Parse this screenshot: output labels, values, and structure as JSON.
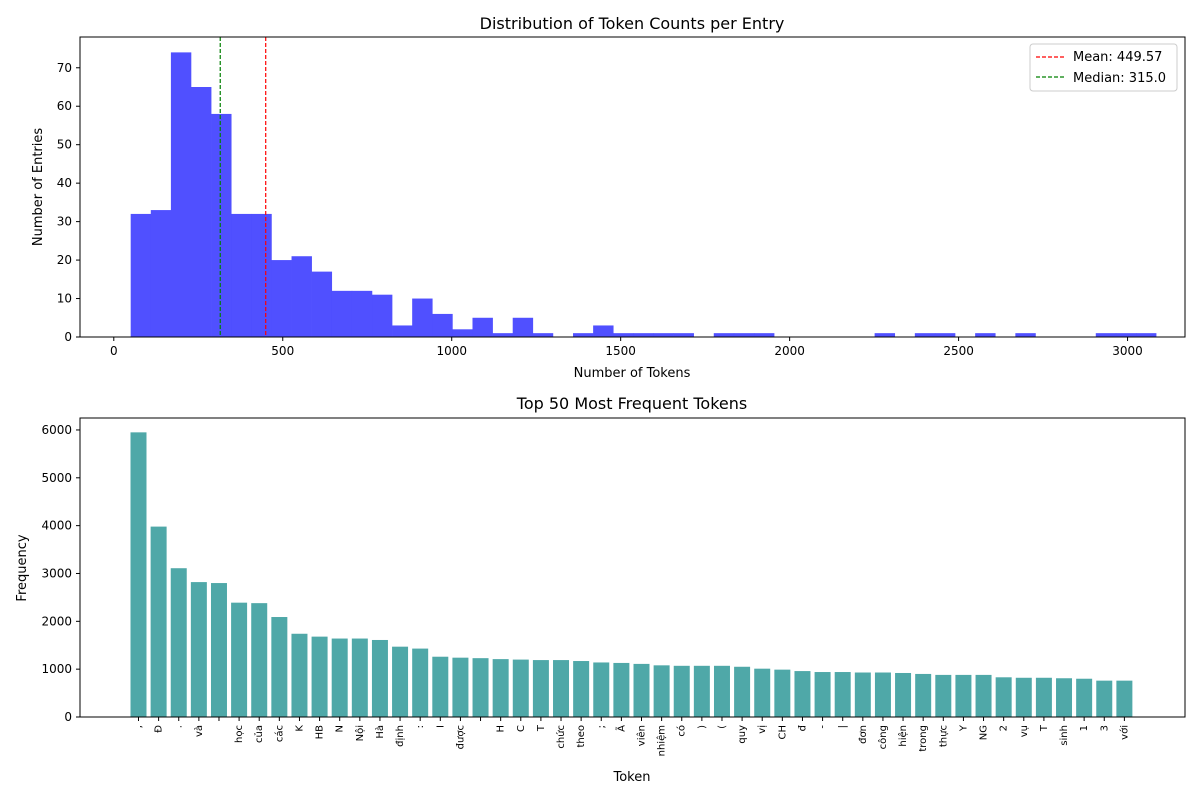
{
  "chart_data": [
    {
      "type": "bar",
      "subtype": "histogram",
      "title": "Distribution of Token Counts per Entry",
      "xlabel": "Number of Tokens",
      "ylabel": "Number of Entries",
      "xlim": [
        -100,
        3170
      ],
      "ylim": [
        0,
        78
      ],
      "xticks": [
        0,
        500,
        1000,
        1500,
        2000,
        2500,
        3000
      ],
      "yticks": [
        0,
        10,
        20,
        30,
        40,
        50,
        60,
        70
      ],
      "color": "#4c4cff",
      "bin_start": 50,
      "bin_width": 59.5,
      "values": [
        32,
        33,
        74,
        65,
        58,
        32,
        32,
        20,
        21,
        17,
        12,
        12,
        11,
        3,
        10,
        6,
        2,
        5,
        1,
        5,
        1,
        0,
        1,
        3,
        1,
        1,
        1,
        1,
        0,
        1,
        1,
        1,
        0,
        0,
        0,
        0,
        0,
        1,
        0,
        1,
        1,
        0,
        1,
        0,
        1,
        0,
        0,
        0,
        1,
        1,
        1
      ],
      "lines": [
        {
          "label": "Mean: 449.57",
          "x": 449.57,
          "color": "#ff0000"
        },
        {
          "label": "Median: 315.0",
          "x": 315.0,
          "color": "#008000"
        }
      ],
      "legend": "top-right",
      "grid": false
    },
    {
      "type": "bar",
      "title": "Top 50 Most Frequent Tokens",
      "xlabel": "Token",
      "ylabel": "Frequency",
      "ylim": [
        0,
        6250
      ],
      "yticks": [
        0,
        1000,
        2000,
        3000,
        4000,
        5000,
        6000
      ],
      "color": "#4fa8a8",
      "categories": [
        ",",
        "Đ",
        ".",
        "và",
        "",
        "học",
        "của",
        "các",
        "K",
        "HB",
        "N",
        "Nội",
        "Hà",
        "định",
        ":",
        "I",
        "được",
        "",
        "H",
        "C",
        "T",
        "chức",
        "theo",
        ";",
        "Ã",
        "viên",
        "nhiệm",
        "có",
        ")",
        "(",
        "quy",
        "vị",
        "CH",
        "đ",
        "-",
        "|",
        "đơn",
        "công",
        "hiện",
        "trong",
        "thực",
        "Y",
        "NG",
        "2",
        "vụ",
        "T",
        "sinh",
        "1",
        "3",
        "với"
      ],
      "values": [
        5950,
        3980,
        3110,
        2820,
        2800,
        2390,
        2380,
        2090,
        1740,
        1680,
        1640,
        1640,
        1610,
        1470,
        1430,
        1260,
        1240,
        1230,
        1210,
        1200,
        1190,
        1190,
        1170,
        1140,
        1130,
        1110,
        1080,
        1070,
        1070,
        1070,
        1050,
        1010,
        990,
        960,
        940,
        940,
        930,
        930,
        920,
        900,
        880,
        880,
        880,
        830,
        820,
        820,
        810,
        800,
        760,
        760
      ],
      "grid": false
    }
  ]
}
